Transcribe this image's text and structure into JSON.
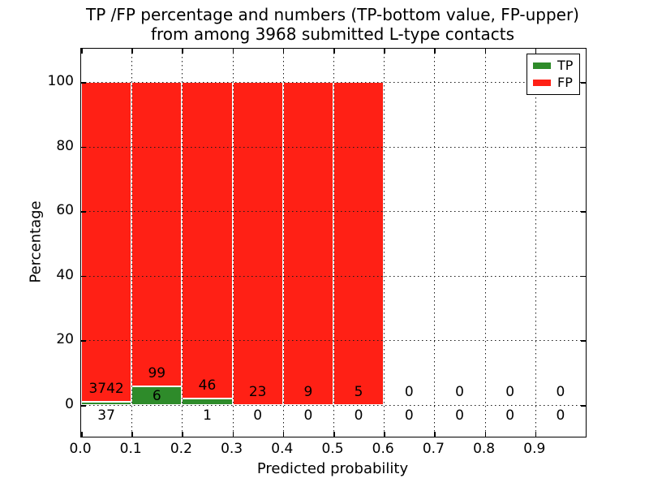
{
  "chart_data": {
    "type": "bar",
    "stacked": true,
    "title_line1": "TP /FP percentage and numbers (TP-bottom value, FP-upper)",
    "title_line2": "from among 3968 submitted L-type contacts",
    "xlabel": "Predicted probability",
    "ylabel": "Percentage",
    "total_submitted_contacts": 3968,
    "xlim": [
      0.0,
      1.0
    ],
    "ylim": [
      -10,
      110
    ],
    "x_tick_labels": [
      "0.0",
      "0.1",
      "0.2",
      "0.3",
      "0.4",
      "0.5",
      "0.6",
      "0.7",
      "0.8",
      "0.9"
    ],
    "y_tick_values": [
      0,
      20,
      40,
      60,
      80,
      100
    ],
    "grid": "dotted",
    "legend": {
      "position": "upper-right",
      "items": [
        {
          "label": "TP",
          "color": "#2e8b2a"
        },
        {
          "label": "FP",
          "color": "#ff2015"
        }
      ]
    },
    "bins": [
      {
        "x_start": 0.0,
        "x_end": 0.1,
        "tp_count": 37,
        "fp_count": 3742,
        "tp_pct": 0.98,
        "fp_pct": 99.02
      },
      {
        "x_start": 0.1,
        "x_end": 0.2,
        "tp_count": 6,
        "fp_count": 99,
        "tp_pct": 5.71,
        "fp_pct": 94.29
      },
      {
        "x_start": 0.2,
        "x_end": 0.3,
        "tp_count": 1,
        "fp_count": 46,
        "tp_pct": 2.13,
        "fp_pct": 97.87
      },
      {
        "x_start": 0.3,
        "x_end": 0.4,
        "tp_count": 0,
        "fp_count": 23,
        "tp_pct": 0,
        "fp_pct": 100
      },
      {
        "x_start": 0.4,
        "x_end": 0.5,
        "tp_count": 0,
        "fp_count": 9,
        "tp_pct": 0,
        "fp_pct": 100
      },
      {
        "x_start": 0.5,
        "x_end": 0.6,
        "tp_count": 0,
        "fp_count": 5,
        "tp_pct": 0,
        "fp_pct": 100
      },
      {
        "x_start": 0.6,
        "x_end": 0.7,
        "tp_count": 0,
        "fp_count": 0,
        "tp_pct": 0,
        "fp_pct": 0
      },
      {
        "x_start": 0.7,
        "x_end": 0.8,
        "tp_count": 0,
        "fp_count": 0,
        "tp_pct": 0,
        "fp_pct": 0
      },
      {
        "x_start": 0.8,
        "x_end": 0.9,
        "tp_count": 0,
        "fp_count": 0,
        "tp_pct": 0,
        "fp_pct": 0
      },
      {
        "x_start": 0.9,
        "x_end": 1.0,
        "tp_count": 0,
        "fp_count": 0,
        "tp_pct": 0,
        "fp_pct": 0
      }
    ],
    "colors": {
      "tp": "#2e8b2a",
      "fp": "#ff2015",
      "grid": "#1a1a1a",
      "background": "#ffffff",
      "bar_edge": "#ffffff"
    }
  }
}
